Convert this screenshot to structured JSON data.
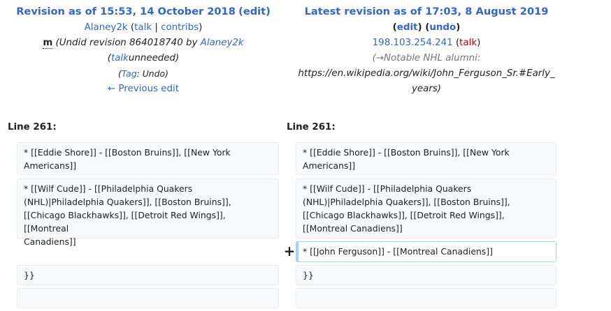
{
  "left": {
    "title_prefix": "Revision as of 15:53, 14 October 2018",
    "edit": "edit",
    "user": "Alaney2k",
    "talk": "talk",
    "contribs": "contribs",
    "minor_flag": "m",
    "summary_prefix": "(Undid revision 864018740 by ",
    "summary_user": "Alaney2k",
    "summary_talk": "talk",
    "summary_suffix": "unneeded)",
    "tag_label": "Tag",
    "tag_value": "Undo",
    "prev_edit": "← Previous edit"
  },
  "right": {
    "title": "Latest revision as of 17:03, 8 August 2019",
    "edit": "edit",
    "undo": "undo",
    "ip": "198.103.254.241",
    "talk": "talk",
    "summary_line1": "(→Notable NHL alumni:",
    "summary_line2": "https://en.wikipedia.org/wiki/John_Ferguson_Sr.#Early_",
    "summary_line3": "years)"
  },
  "diff": {
    "left_line_label": "Line 261:",
    "right_line_label": "Line 261:",
    "left_cells": [
      "* [[Eddie Shore]] - [[Boston Bruins]], [[New York\nAmericans]]",
      "* [[Wilf Cude]] - [[Philadelphia Quakers\n(NHL)|Philadelphia Quakers]], [[Boston Bruins]],\n[[Chicago Blackhawks]], [[Detroit Red Wings]], [[Montreal\nCanadiens]]",
      "}}",
      ""
    ],
    "right_cells": [
      "* [[Eddie Shore]] - [[Boston Bruins]], [[New York\nAmericans]]",
      "* [[Wilf Cude]] - [[Philadelphia Quakers\n(NHL)|Philadelphia Quakers]], [[Boston Bruins]],\n[[Chicago Blackhawks]], [[Detroit Red Wings]],\n[[Montreal Canadiens]]",
      "* [[John Ferguson]] - [[Montreal Canadiens]]",
      "}}",
      ""
    ],
    "added_marker": "+"
  }
}
